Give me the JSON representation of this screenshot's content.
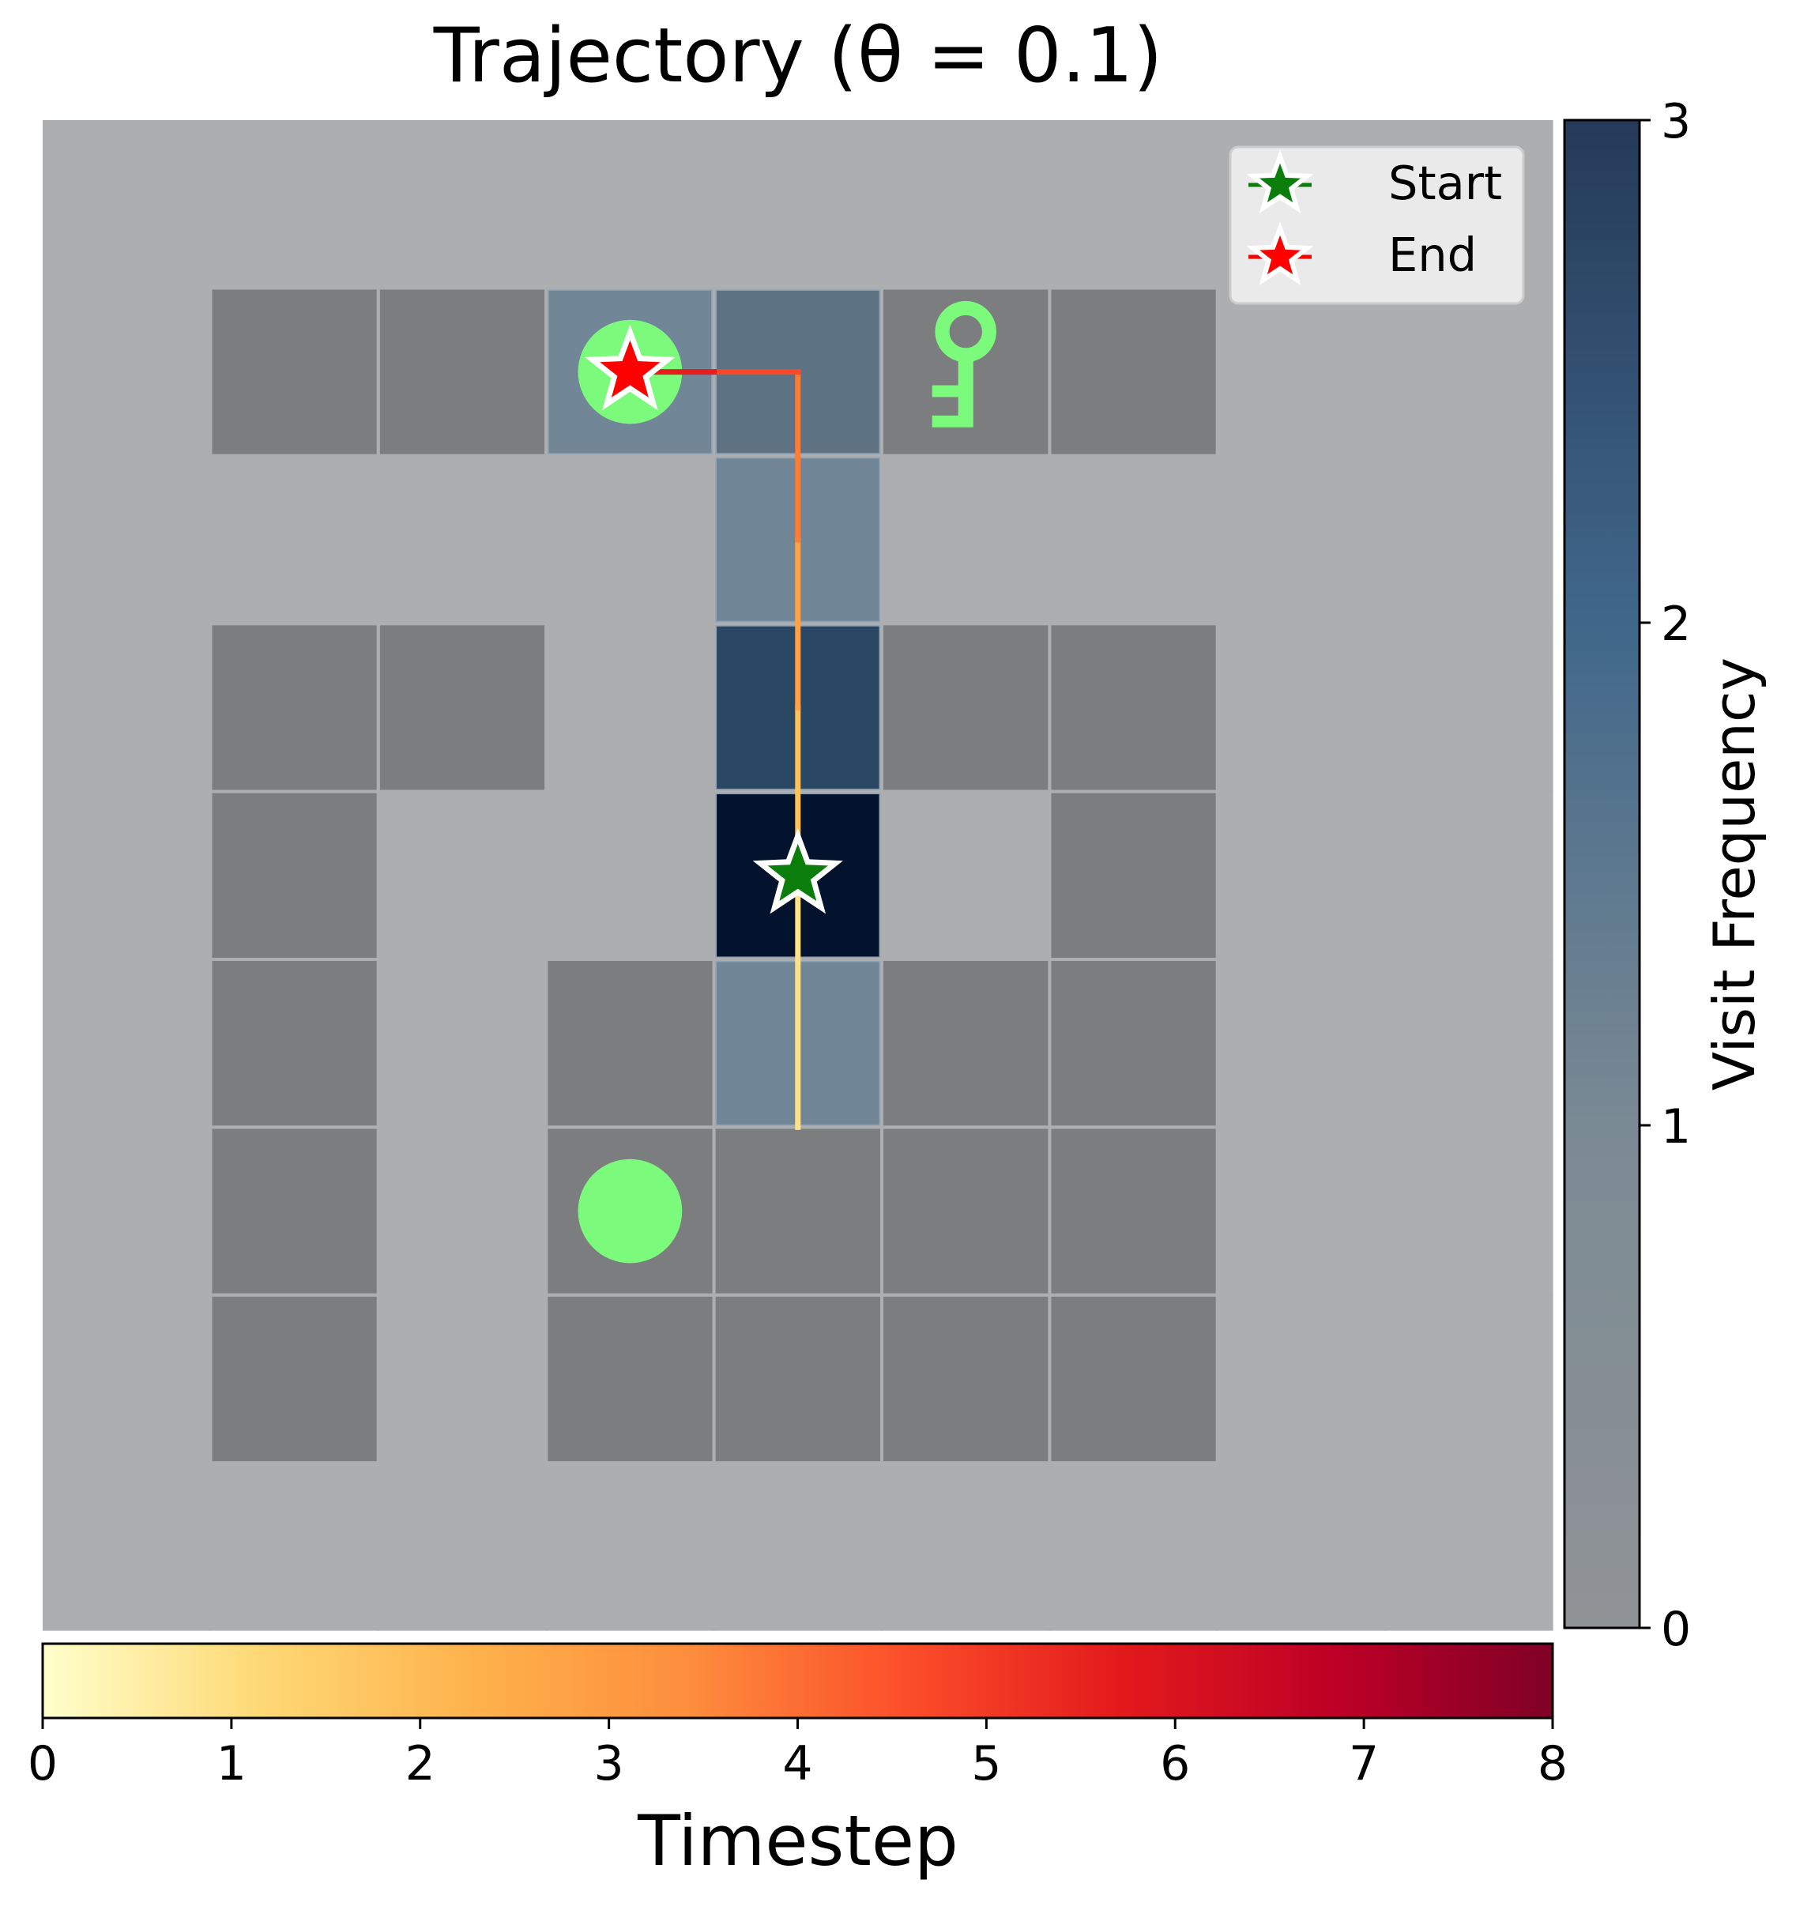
{
  "title": "Trajectory (θ = 0.1)",
  "chart_data": {
    "type": "heatmap",
    "title": "Trajectory (θ = 0.1)",
    "grid_size": [
      9,
      9
    ],
    "grid_lines": true,
    "floor_color": "#adaeb0",
    "wall_color": "#7c7d7f",
    "walls": [
      [
        1,
        1
      ],
      [
        2,
        1
      ],
      [
        4,
        1
      ],
      [
        5,
        1
      ],
      [
        6,
        1
      ],
      [
        1,
        3
      ],
      [
        2,
        3
      ],
      [
        5,
        3
      ],
      [
        6,
        3
      ],
      [
        1,
        4
      ],
      [
        6,
        4
      ],
      [
        1,
        5
      ],
      [
        3,
        5
      ],
      [
        5,
        5
      ],
      [
        6,
        5
      ],
      [
        1,
        6
      ],
      [
        3,
        6
      ],
      [
        4,
        6
      ],
      [
        5,
        6
      ],
      [
        6,
        6
      ],
      [
        1,
        7
      ],
      [
        3,
        7
      ],
      [
        4,
        7
      ],
      [
        5,
        7
      ],
      [
        6,
        7
      ]
    ],
    "visit_counts": [
      {
        "col": 3,
        "row": 1,
        "count": 1
      },
      {
        "col": 4,
        "row": 1,
        "count": 1
      },
      {
        "col": 4,
        "row": 2,
        "count": 1
      },
      {
        "col": 4,
        "row": 3,
        "count": 2
      },
      {
        "col": 4,
        "row": 4,
        "count": 3
      },
      {
        "col": 4,
        "row": 5,
        "count": 1
      }
    ],
    "objects": [
      {
        "kind": "goal-ball",
        "col": 3,
        "row": 1,
        "color": "#7cfa7c"
      },
      {
        "kind": "key",
        "col": 5,
        "row": 1,
        "color": "#7cfa7c"
      },
      {
        "kind": "goal-ball",
        "col": 3,
        "row": 6,
        "color": "#7cfa7c"
      }
    ],
    "trajectory": [
      {
        "t": 0,
        "col": 4,
        "row": 5.5
      },
      {
        "t": 1,
        "col": 4,
        "row": 4
      },
      {
        "t": 2,
        "col": 4,
        "row": 3
      },
      {
        "t": 3,
        "col": 4,
        "row": 2
      },
      {
        "t": 4,
        "col": 4,
        "row": 1
      },
      {
        "t": 5,
        "col": 3.5,
        "row": 1
      },
      {
        "t": 6,
        "col": 3,
        "row": 1
      }
    ],
    "start": {
      "col": 4,
      "row": 4
    },
    "end": {
      "col": 3,
      "row": 1
    },
    "legend": {
      "position": "top-right",
      "entries": [
        {
          "label": "Start",
          "color": "#0a7d0a"
        },
        {
          "label": "End",
          "color": "#ff0000"
        }
      ]
    },
    "visit_colorbar": {
      "label": "Visit Frequency",
      "range": [
        0,
        3
      ],
      "ticks": [
        "0",
        "1",
        "2",
        "3"
      ],
      "colors": [
        "#909396",
        "#7a8a94",
        "#40678a",
        "#253a58"
      ]
    },
    "time_colorbar": {
      "label": "Timestep",
      "range": [
        0,
        8
      ],
      "ticks": [
        "0",
        "1",
        "2",
        "3",
        "4",
        "5",
        "6",
        "7",
        "8"
      ],
      "colors": [
        "#ffffcc",
        "#fed976",
        "#feb24c",
        "#fd8d3c",
        "#fc4e2a",
        "#e31a1c",
        "#bd0026",
        "#800026"
      ]
    }
  }
}
